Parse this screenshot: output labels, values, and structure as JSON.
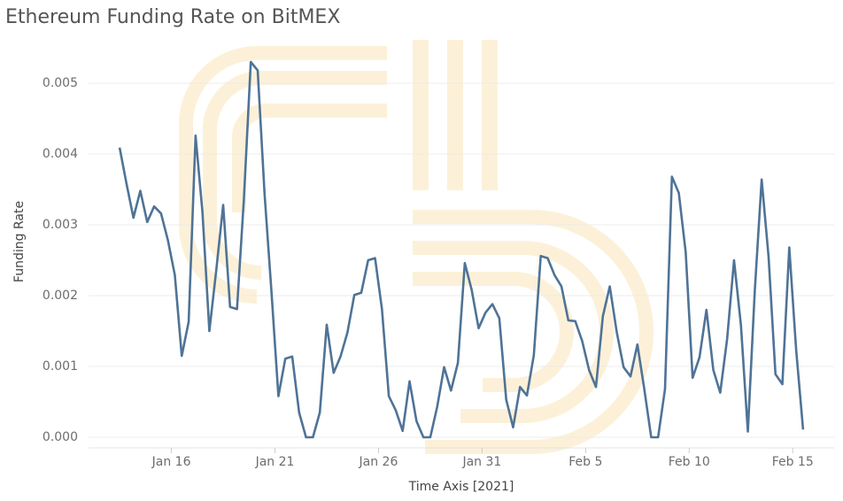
{
  "chart_data": {
    "type": "line",
    "title": "Ethereum Funding Rate on BitMEX",
    "x_label": "Time Axis [2021]",
    "y_label": "Funding Rate",
    "color": "#4f7396",
    "grid": true,
    "xlim": [
      "2021-01-12T00:00",
      "2021-02-17T00:00"
    ],
    "xticks": [
      {
        "value": "2021-01-16T00:00",
        "label": "Jan 16"
      },
      {
        "value": "2021-01-21T00:00",
        "label": "Jan 21"
      },
      {
        "value": "2021-01-26T00:00",
        "label": "Jan 26"
      },
      {
        "value": "2021-01-31T00:00",
        "label": "Jan 31"
      },
      {
        "value": "2021-02-05T00:00",
        "label": "Feb 5"
      },
      {
        "value": "2021-02-10T00:00",
        "label": "Feb 10"
      },
      {
        "value": "2021-02-15T00:00",
        "label": "Feb 15"
      }
    ],
    "ylim": [
      -0.0001,
      0.0055
    ],
    "yticks": [
      {
        "value": 0,
        "label": "0.000"
      },
      0.001,
      0.002,
      0.003,
      0.004,
      0.005
    ],
    "x": [
      "2021-01-13T12:00",
      "2021-01-13T20:00",
      "2021-01-14T04:00",
      "2021-01-14T12:00",
      "2021-01-14T20:00",
      "2021-01-15T04:00",
      "2021-01-15T12:00",
      "2021-01-15T20:00",
      "2021-01-16T04:00",
      "2021-01-16T12:00",
      "2021-01-16T20:00",
      "2021-01-17T04:00",
      "2021-01-17T12:00",
      "2021-01-17T20:00",
      "2021-01-18T04:00",
      "2021-01-18T12:00",
      "2021-01-18T20:00",
      "2021-01-19T04:00",
      "2021-01-19T12:00",
      "2021-01-19T20:00",
      "2021-01-20T04:00",
      "2021-01-20T12:00",
      "2021-01-20T20:00",
      "2021-01-21T04:00",
      "2021-01-21T12:00",
      "2021-01-21T20:00",
      "2021-01-22T04:00",
      "2021-01-22T12:00",
      "2021-01-22T20:00",
      "2021-01-23T04:00",
      "2021-01-23T12:00",
      "2021-01-23T20:00",
      "2021-01-24T04:00",
      "2021-01-24T12:00",
      "2021-01-24T20:00",
      "2021-01-25T04:00",
      "2021-01-25T12:00",
      "2021-01-25T20:00",
      "2021-01-26T04:00",
      "2021-01-26T12:00",
      "2021-01-26T20:00",
      "2021-01-27T04:00",
      "2021-01-27T12:00",
      "2021-01-27T20:00",
      "2021-01-28T04:00",
      "2021-01-28T12:00",
      "2021-01-28T20:00",
      "2021-01-29T04:00",
      "2021-01-29T12:00",
      "2021-01-29T20:00",
      "2021-01-30T04:00",
      "2021-01-30T12:00",
      "2021-01-30T20:00",
      "2021-01-31T04:00",
      "2021-01-31T12:00",
      "2021-01-31T20:00",
      "2021-02-01T04:00",
      "2021-02-01T12:00",
      "2021-02-01T20:00",
      "2021-02-02T04:00",
      "2021-02-02T12:00",
      "2021-02-02T20:00",
      "2021-02-03T04:00",
      "2021-02-03T12:00",
      "2021-02-03T20:00",
      "2021-02-04T04:00",
      "2021-02-04T12:00",
      "2021-02-04T20:00",
      "2021-02-05T04:00",
      "2021-02-05T12:00",
      "2021-02-05T20:00",
      "2021-02-06T04:00",
      "2021-02-06T12:00",
      "2021-02-06T20:00",
      "2021-02-07T04:00",
      "2021-02-07T12:00",
      "2021-02-07T20:00",
      "2021-02-08T04:00",
      "2021-02-08T12:00",
      "2021-02-08T20:00",
      "2021-02-09T04:00",
      "2021-02-09T12:00",
      "2021-02-09T20:00",
      "2021-02-10T04:00",
      "2021-02-10T12:00",
      "2021-02-10T20:00",
      "2021-02-11T04:00",
      "2021-02-11T12:00",
      "2021-02-11T20:00",
      "2021-02-12T04:00",
      "2021-02-12T12:00",
      "2021-02-12T20:00",
      "2021-02-13T04:00",
      "2021-02-13T12:00",
      "2021-02-13T20:00",
      "2021-02-14T04:00",
      "2021-02-14T12:00",
      "2021-02-14T20:00",
      "2021-02-15T04:00",
      "2021-02-15T12:00"
    ],
    "values": [
      0.00409,
      0.00358,
      0.0031,
      0.00348,
      0.00304,
      0.00326,
      0.00316,
      0.00278,
      0.00229,
      0.00115,
      0.00163,
      0.00426,
      0.00318,
      0.0015,
      0.00236,
      0.00328,
      0.00184,
      0.00181,
      0.00336,
      0.0053,
      0.00518,
      0.00343,
      0.00205,
      0.00058,
      0.00111,
      0.00114,
      0.00035,
      0.0,
      0.0,
      0.00035,
      0.00159,
      0.00091,
      0.00114,
      0.00148,
      0.00201,
      0.00204,
      0.0025,
      0.00253,
      0.00181,
      0.00058,
      0.00038,
      9e-05,
      0.00079,
      0.00023,
      0.0,
      0.0,
      0.00043,
      0.00099,
      0.00066,
      0.00105,
      0.00246,
      0.00208,
      0.00154,
      0.00176,
      0.00188,
      0.00168,
      0.00053,
      0.00014,
      0.00071,
      0.00059,
      0.00116,
      0.00256,
      0.00253,
      0.00229,
      0.00213,
      0.00165,
      0.00164,
      0.00136,
      0.00095,
      0.00071,
      0.00171,
      0.00213,
      0.00149,
      0.00099,
      0.00086,
      0.00131,
      0.00068,
      0.0,
      0.0,
      0.00068,
      0.00368,
      0.00345,
      0.00261,
      0.00084,
      0.00113,
      0.0018,
      0.00095,
      0.00063,
      0.00139,
      0.0025,
      0.00158,
      8e-05,
      0.00206,
      0.00364,
      0.00255,
      0.00089,
      0.00075,
      0.00268,
      0.00123,
      0.00011
    ]
  }
}
